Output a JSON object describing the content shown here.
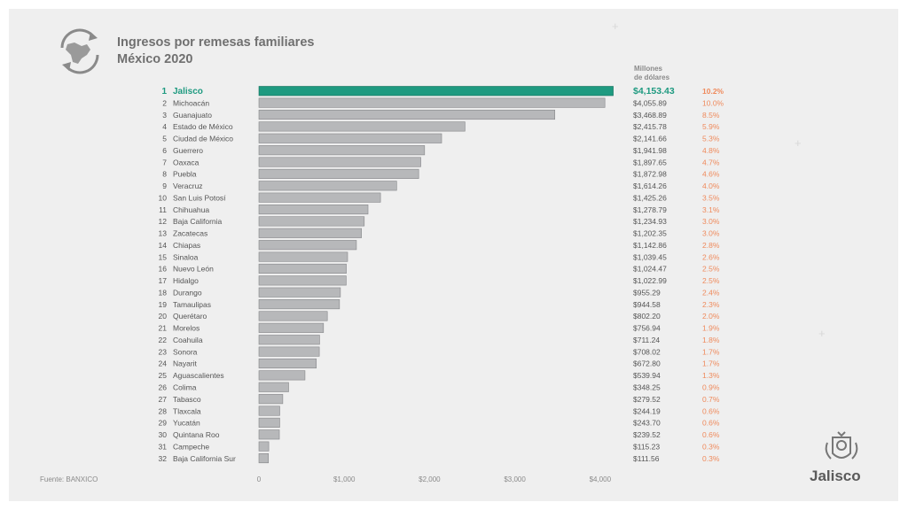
{
  "header": {
    "title_line1": "Ingresos por remesas familiares",
    "title_line2": "México 2020",
    "unit_label_line1": "Millones",
    "unit_label_line2": "de dólares"
  },
  "footer": {
    "source": "Fuente: BANXICO",
    "brand": "Jalisco"
  },
  "colors": {
    "highlight": "#1e9a80",
    "bar": "#b7b8ba",
    "bar_edge": "#858689",
    "percent": "#ef8a5c",
    "text": "#555555"
  },
  "icons": [
    "mexico-map-refresh-icon",
    "jalisco-crest-icon"
  ],
  "chart_data": {
    "type": "bar",
    "orientation": "horizontal",
    "ranks": [
      "1",
      "2",
      "3",
      "4",
      "5",
      "6",
      "7",
      "8",
      "9",
      "10",
      "11",
      "12",
      "13",
      "14",
      "15",
      "16",
      "17",
      "18",
      "19",
      "20",
      "21",
      "22",
      "23",
      "24",
      "25",
      "26",
      "27",
      "28",
      "29",
      "30",
      "31",
      "32"
    ],
    "categories": [
      "Jalisco",
      "Michoacán",
      "Guanajuato",
      "Estado de México",
      "Ciudad de México",
      "Guerrero",
      "Oaxaca",
      "Puebla",
      "Veracruz",
      "San Luis Potosí",
      "Chihuahua",
      "Baja California",
      "Zacatecas",
      "Chiapas",
      "Sinaloa",
      "Nuevo León",
      "Hidalgo",
      "Durango",
      "Tamaulipas",
      "Querétaro",
      "Morelos",
      "Coahuila",
      "Sonora",
      "Nayarit",
      "Aguascalientes",
      "Colima",
      "Tabasco",
      "Tlaxcala",
      "Yucatán",
      "Quintana Roo",
      "Campeche",
      "Baja California Sur"
    ],
    "values": [
      4153.43,
      4055.89,
      3468.89,
      2415.78,
      2141.66,
      1941.98,
      1897.65,
      1872.98,
      1614.26,
      1425.26,
      1278.79,
      1234.93,
      1202.35,
      1142.86,
      1039.45,
      1024.47,
      1022.99,
      955.29,
      944.58,
      802.2,
      756.94,
      711.24,
      708.02,
      672.8,
      539.94,
      348.25,
      279.52,
      244.19,
      243.7,
      239.52,
      115.23,
      111.56
    ],
    "value_labels": [
      "$4,153.43",
      "$4,055.89",
      "$3,468.89",
      "$2,415.78",
      "$2,141.66",
      "$1,941.98",
      "$1,897.65",
      "$1,872.98",
      "$1,614.26",
      "$1,425.26",
      "$1,278.79",
      "$1,234.93",
      "$1,202.35",
      "$1,142.86",
      "$1,039.45",
      "$1,024.47",
      "$1,022.99",
      "$955.29",
      "$944.58",
      "$802.20",
      "$756.94",
      "$711.24",
      "$708.02",
      "$672.80",
      "$539.94",
      "$348.25",
      "$279.52",
      "$244.19",
      "$243.70",
      "$239.52",
      "$115.23",
      "$111.56"
    ],
    "percent_labels": [
      "10.2%",
      "10.0%",
      "8.5%",
      "5.9%",
      "5.3%",
      "4.8%",
      "4.7%",
      "4.6%",
      "4.0%",
      "3.5%",
      "3.1%",
      "3.0%",
      "3.0%",
      "2.8%",
      "2.6%",
      "2.5%",
      "2.5%",
      "2.4%",
      "2.3%",
      "2.0%",
      "1.9%",
      "1.8%",
      "1.7%",
      "1.7%",
      "1.3%",
      "0.9%",
      "0.7%",
      "0.6%",
      "0.6%",
      "0.6%",
      "0.3%",
      "0.3%"
    ],
    "x_ticks": [
      0,
      1000,
      2000,
      3000,
      4000
    ],
    "x_tick_labels": [
      "0",
      "$1,000",
      "$2,000",
      "$3,000",
      "$4,000"
    ],
    "xlim": [
      0,
      4200
    ],
    "highlight_index": 0,
    "grid": false
  }
}
